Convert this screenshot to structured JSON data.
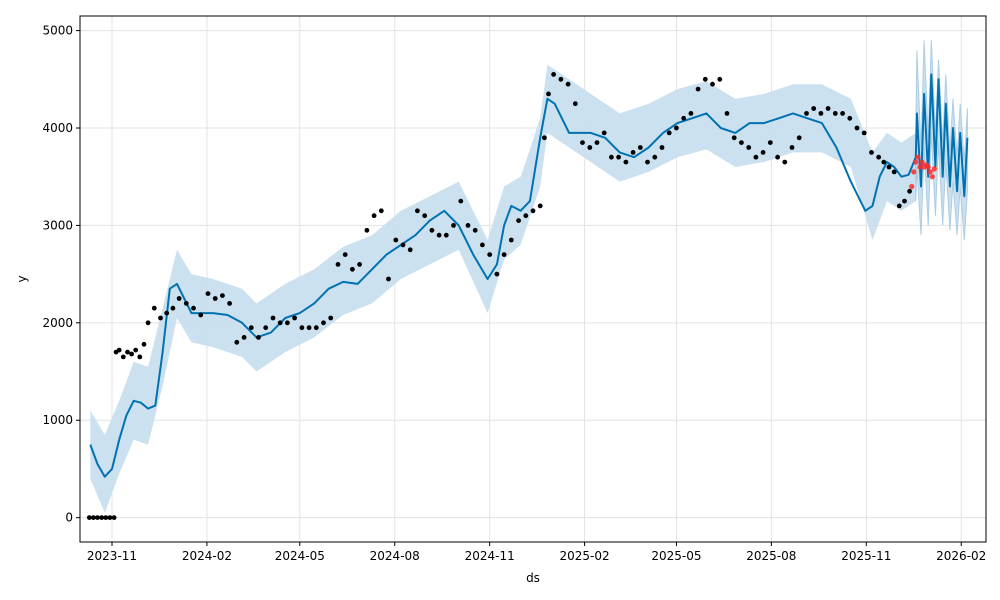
{
  "chart_data": {
    "type": "line",
    "title": "",
    "xlabel": "ds",
    "ylabel": "y",
    "xlim": [
      "2023-10-01",
      "2026-02-25"
    ],
    "ylim": [
      -250,
      5150
    ],
    "x_ticks": [
      "2023-11",
      "2024-02",
      "2024-05",
      "2024-08",
      "2024-11",
      "2025-02",
      "2025-05",
      "2025-08",
      "2025-11",
      "2026-02"
    ],
    "y_ticks": [
      0,
      1000,
      2000,
      3000,
      4000,
      5000
    ],
    "grid": true,
    "legend": "none",
    "colors": {
      "forecast_line": "#0072b2",
      "uncertainty_band": "#c8dfee",
      "actual_points": "#000000",
      "test_points": "#ff2a2a"
    },
    "series": [
      {
        "kind": "forecast",
        "x": [
          "2023-10-11",
          "2023-10-18",
          "2023-10-25",
          "2023-11-01",
          "2023-11-08",
          "2023-11-15",
          "2023-11-22",
          "2023-11-29",
          "2023-12-06",
          "2023-12-13",
          "2023-12-20",
          "2023-12-27",
          "2024-01-03",
          "2024-01-10",
          "2024-01-17",
          "2024-01-24",
          "2024-02-07",
          "2024-02-21",
          "2024-03-06",
          "2024-03-20",
          "2024-04-03",
          "2024-04-17",
          "2024-05-01",
          "2024-05-15",
          "2024-05-29",
          "2024-06-12",
          "2024-06-26",
          "2024-07-10",
          "2024-07-24",
          "2024-08-07",
          "2024-08-21",
          "2024-09-04",
          "2024-09-18",
          "2024-10-02",
          "2024-10-16",
          "2024-10-30",
          "2024-11-08",
          "2024-11-15",
          "2024-11-22",
          "2024-12-01",
          "2024-12-10",
          "2024-12-20",
          "2024-12-27",
          "2025-01-03",
          "2025-01-10",
          "2025-01-17",
          "2025-01-24",
          "2025-02-07",
          "2025-02-21",
          "2025-03-07",
          "2025-03-21",
          "2025-04-04",
          "2025-04-18",
          "2025-05-02",
          "2025-05-16",
          "2025-05-30",
          "2025-06-13",
          "2025-06-27",
          "2025-07-11",
          "2025-07-25",
          "2025-08-08",
          "2025-08-22",
          "2025-09-05",
          "2025-09-19",
          "2025-10-03",
          "2025-10-17",
          "2025-10-31",
          "2025-11-07",
          "2025-11-14",
          "2025-11-21",
          "2025-11-28",
          "2025-12-05",
          "2025-12-12",
          "2025-12-19"
        ],
        "y": [
          750,
          550,
          420,
          500,
          800,
          1050,
          1200,
          1180,
          1120,
          1150,
          1700,
          2350,
          2400,
          2250,
          2100,
          2100,
          2100,
          2080,
          2000,
          1850,
          1900,
          2050,
          2100,
          2200,
          2350,
          2420,
          2400,
          2550,
          2700,
          2800,
          2900,
          3050,
          3150,
          3000,
          2700,
          2450,
          2600,
          3000,
          3200,
          3150,
          3250,
          3900,
          4300,
          4250,
          4100,
          3950,
          3950,
          3950,
          3900,
          3750,
          3700,
          3800,
          3950,
          4050,
          4100,
          4150,
          4000,
          3950,
          4050,
          4050,
          4100,
          4150,
          4100,
          4050,
          3800,
          3450,
          3150,
          3200,
          3500,
          3650,
          3600,
          3500,
          3520,
          3700
        ]
      },
      {
        "kind": "uncertainty_upper",
        "x": [
          "2023-10-11",
          "2023-10-25",
          "2023-11-08",
          "2023-11-22",
          "2023-12-06",
          "2023-12-20",
          "2024-01-03",
          "2024-01-17",
          "2024-02-07",
          "2024-03-06",
          "2024-03-20",
          "2024-04-17",
          "2024-05-15",
          "2024-06-12",
          "2024-07-10",
          "2024-08-07",
          "2024-09-04",
          "2024-10-02",
          "2024-10-30",
          "2024-11-15",
          "2024-12-01",
          "2024-12-20",
          "2024-12-27",
          "2025-01-10",
          "2025-02-07",
          "2025-03-07",
          "2025-04-04",
          "2025-05-02",
          "2025-05-30",
          "2025-06-27",
          "2025-07-25",
          "2025-08-22",
          "2025-09-19",
          "2025-10-17",
          "2025-11-07",
          "2025-11-21",
          "2025-12-05",
          "2025-12-19"
        ],
        "y": [
          1100,
          850,
          1200,
          1600,
          1550,
          2150,
          2750,
          2500,
          2450,
          2350,
          2200,
          2400,
          2550,
          2780,
          2900,
          3150,
          3300,
          3450,
          2850,
          3400,
          3500,
          4100,
          4650,
          4550,
          4350,
          4150,
          4250,
          4400,
          4480,
          4300,
          4350,
          4450,
          4450,
          4300,
          3750,
          3950,
          3850,
          3950
        ]
      },
      {
        "kind": "uncertainty_lower",
        "x": [
          "2023-10-11",
          "2023-10-25",
          "2023-11-08",
          "2023-11-22",
          "2023-12-06",
          "2023-12-20",
          "2024-01-03",
          "2024-01-17",
          "2024-02-07",
          "2024-03-06",
          "2024-03-20",
          "2024-04-17",
          "2024-05-15",
          "2024-06-12",
          "2024-07-10",
          "2024-08-07",
          "2024-09-04",
          "2024-10-02",
          "2024-10-30",
          "2024-11-15",
          "2024-12-01",
          "2024-12-20",
          "2024-12-27",
          "2025-01-10",
          "2025-02-07",
          "2025-03-07",
          "2025-04-04",
          "2025-05-02",
          "2025-05-30",
          "2025-06-27",
          "2025-07-25",
          "2025-08-22",
          "2025-09-19",
          "2025-10-17",
          "2025-11-07",
          "2025-11-21",
          "2025-12-05",
          "2025-12-19"
        ],
        "y": [
          400,
          50,
          450,
          800,
          750,
          1350,
          2050,
          1800,
          1750,
          1650,
          1500,
          1700,
          1850,
          2080,
          2200,
          2450,
          2600,
          2750,
          2100,
          2650,
          2800,
          3400,
          3950,
          3850,
          3650,
          3450,
          3550,
          3700,
          3780,
          3600,
          3650,
          3750,
          3750,
          3600,
          2850,
          3250,
          3150,
          3250
        ]
      },
      {
        "kind": "forecast_future_peaks",
        "x": [
          "2025-12-20",
          "2025-12-24",
          "2025-12-27",
          "2025-12-31",
          "2026-01-03",
          "2026-01-07",
          "2026-01-10",
          "2026-01-14",
          "2026-01-17",
          "2026-01-21",
          "2026-01-24",
          "2026-01-28",
          "2026-01-31",
          "2026-02-04",
          "2026-02-07"
        ],
        "y": [
          4150,
          3400,
          4350,
          3500,
          4550,
          3600,
          4500,
          3500,
          4250,
          3400,
          4000,
          3350,
          3950,
          3300,
          3900
        ],
        "upper": [
          4800,
          3800,
          4900,
          3900,
          4900,
          3950,
          4700,
          3850,
          4550,
          3750,
          4300,
          3700,
          4250,
          3650,
          4200
        ],
        "lower": [
          3600,
          2900,
          3800,
          3000,
          3950,
          3100,
          3850,
          3000,
          3650,
          2950,
          3450,
          2900,
          3400,
          2850,
          3350
        ]
      },
      {
        "kind": "actual",
        "x": [
          "2023-10-10",
          "2023-10-14",
          "2023-10-18",
          "2023-10-22",
          "2023-10-26",
          "2023-10-30",
          "2023-11-03",
          "2023-11-05",
          "2023-11-08",
          "2023-11-12",
          "2023-11-16",
          "2023-11-20",
          "2023-11-24",
          "2023-11-28",
          "2023-12-02",
          "2023-12-06",
          "2023-12-12",
          "2023-12-18",
          "2023-12-24",
          "2023-12-30",
          "2024-01-05",
          "2024-01-12",
          "2024-01-19",
          "2024-01-26",
          "2024-02-02",
          "2024-02-09",
          "2024-02-16",
          "2024-02-23",
          "2024-03-01",
          "2024-03-08",
          "2024-03-15",
          "2024-03-22",
          "2024-03-29",
          "2024-04-05",
          "2024-04-12",
          "2024-04-19",
          "2024-04-26",
          "2024-05-03",
          "2024-05-10",
          "2024-05-17",
          "2024-05-24",
          "2024-05-31",
          "2024-06-07",
          "2024-06-14",
          "2024-06-21",
          "2024-06-28",
          "2024-07-05",
          "2024-07-12",
          "2024-07-19",
          "2024-07-26",
          "2024-08-02",
          "2024-08-09",
          "2024-08-16",
          "2024-08-23",
          "2024-08-30",
          "2024-09-06",
          "2024-09-13",
          "2024-09-20",
          "2024-09-27",
          "2024-10-04",
          "2024-10-11",
          "2024-10-18",
          "2024-10-25",
          "2024-11-01",
          "2024-11-08",
          "2024-11-15",
          "2024-11-22",
          "2024-11-29",
          "2024-12-06",
          "2024-12-13",
          "2024-12-20",
          "2024-12-24",
          "2024-12-28",
          "2025-01-02",
          "2025-01-09",
          "2025-01-16",
          "2025-01-23",
          "2025-01-30",
          "2025-02-06",
          "2025-02-13",
          "2025-02-20",
          "2025-02-27",
          "2025-03-06",
          "2025-03-13",
          "2025-03-20",
          "2025-03-27",
          "2025-04-03",
          "2025-04-10",
          "2025-04-17",
          "2025-04-24",
          "2025-05-01",
          "2025-05-08",
          "2025-05-15",
          "2025-05-22",
          "2025-05-29",
          "2025-06-05",
          "2025-06-12",
          "2025-06-19",
          "2025-06-26",
          "2025-07-03",
          "2025-07-10",
          "2025-07-17",
          "2025-07-24",
          "2025-07-31",
          "2025-08-07",
          "2025-08-14",
          "2025-08-21",
          "2025-08-28",
          "2025-09-04",
          "2025-09-11",
          "2025-09-18",
          "2025-09-25",
          "2025-10-02",
          "2025-10-09",
          "2025-10-16",
          "2025-10-23",
          "2025-10-30",
          "2025-11-06",
          "2025-11-13",
          "2025-11-18",
          "2025-11-23",
          "2025-11-28",
          "2025-12-03",
          "2025-12-08",
          "2025-12-13"
        ],
        "y": [
          0,
          0,
          0,
          0,
          0,
          0,
          0,
          1700,
          1720,
          1650,
          1700,
          1680,
          1720,
          1650,
          1780,
          2000,
          2150,
          2050,
          2100,
          2150,
          2250,
          2200,
          2150,
          2080,
          2300,
          2250,
          2280,
          2200,
          1800,
          1850,
          1950,
          1850,
          1950,
          2050,
          2000,
          2000,
          2050,
          1950,
          1950,
          1950,
          2000,
          2050,
          2600,
          2700,
          2550,
          2600,
          2950,
          3100,
          3150,
          2450,
          2850,
          2800,
          2750,
          3150,
          3100,
          2950,
          2900,
          2900,
          3000,
          3250,
          3000,
          2950,
          2800,
          2700,
          2500,
          2700,
          2850,
          3050,
          3100,
          3150,
          3200,
          3900,
          4350,
          4550,
          4500,
          4450,
          4250,
          3850,
          3800,
          3850,
          3950,
          3700,
          3700,
          3650,
          3750,
          3800,
          3650,
          3700,
          3800,
          3950,
          4000,
          4100,
          4150,
          4400,
          4500,
          4450,
          4500,
          4150,
          3900,
          3850,
          3800,
          3700,
          3750,
          3850,
          3700,
          3650,
          3800,
          3900,
          4150,
          4200,
          4150,
          4200,
          4150,
          4150,
          4100,
          4000,
          3950,
          3750,
          3700,
          3650,
          3600,
          3550,
          3200,
          3250,
          3350
        ]
      },
      {
        "kind": "test",
        "x": [
          "2025-12-15",
          "2025-12-17",
          "2025-12-19",
          "2025-12-21",
          "2025-12-23",
          "2025-12-25",
          "2025-12-27",
          "2025-12-29",
          "2025-12-31",
          "2026-01-02",
          "2026-01-04",
          "2026-01-06"
        ],
        "y": [
          3400,
          3550,
          3650,
          3700,
          3600,
          3650,
          3600,
          3620,
          3600,
          3550,
          3500,
          3580
        ]
      }
    ]
  }
}
